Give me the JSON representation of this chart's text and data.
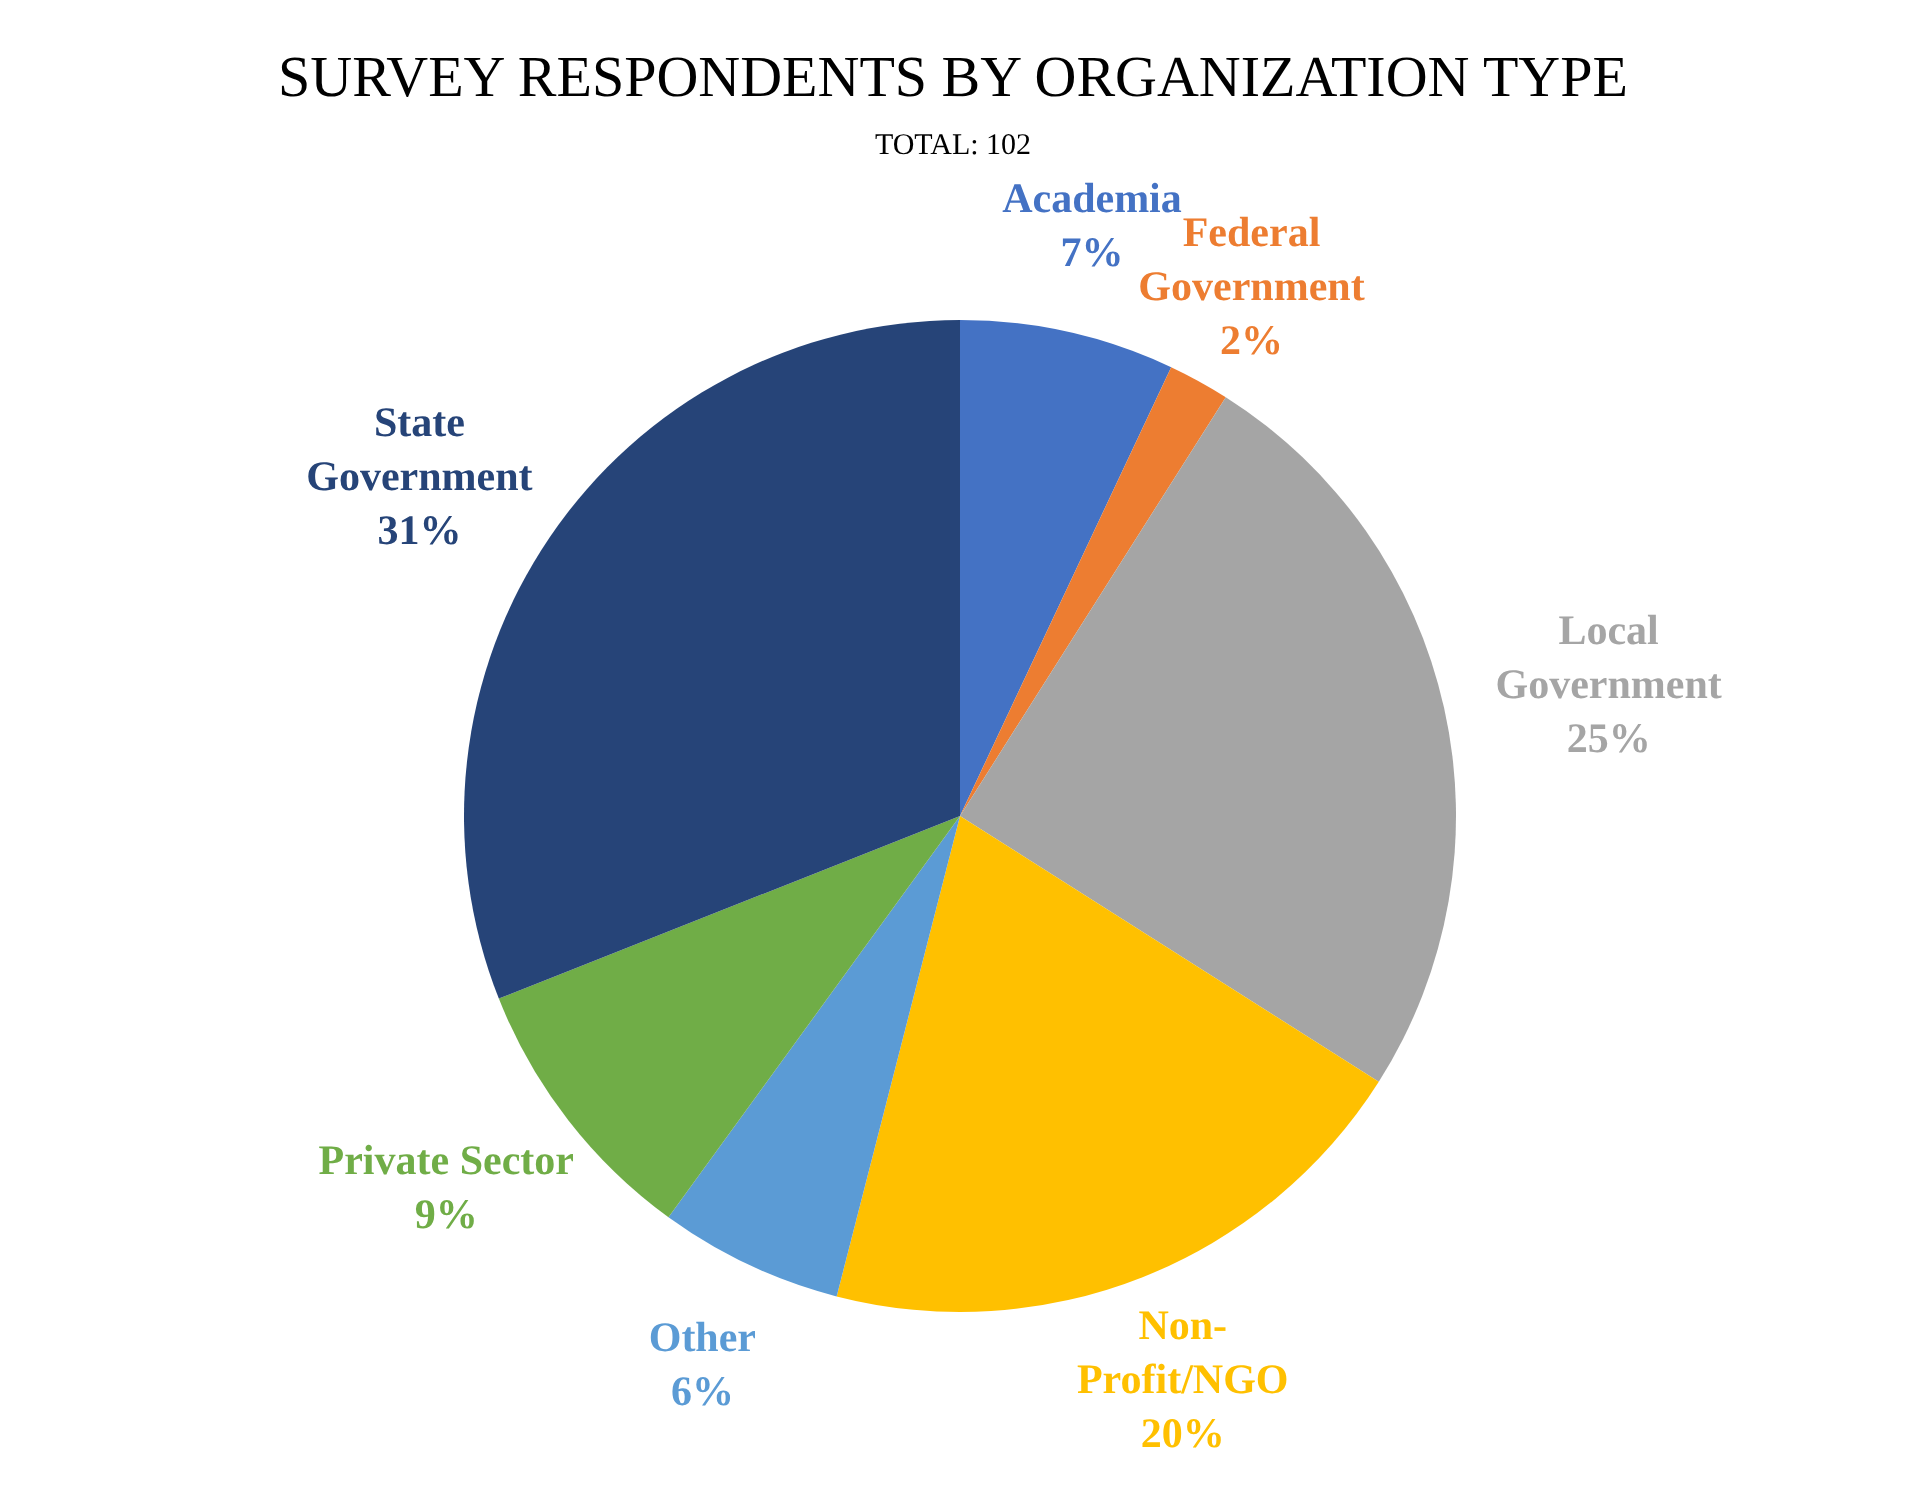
{
  "chart_data": {
    "type": "pie",
    "title": "SURVEY RESPONDENTS BY ORGANIZATION TYPE",
    "subtitle": "TOTAL: 102",
    "categories": [
      "Academia",
      "Federal Government",
      "Local Government",
      "Non-Profit/NGO",
      "Other",
      "Private Sector",
      "State Government"
    ],
    "values": [
      7,
      2,
      25,
      20,
      6,
      9,
      31
    ],
    "colors": [
      "#4472c4",
      "#ed7d31",
      "#a5a5a5",
      "#ffc000",
      "#5b9bd5",
      "#70ad47",
      "#264478"
    ],
    "value_labels": [
      "7%",
      "2%",
      "25%",
      "20%",
      "6%",
      "9%",
      "31%"
    ],
    "legend": false
  }
}
